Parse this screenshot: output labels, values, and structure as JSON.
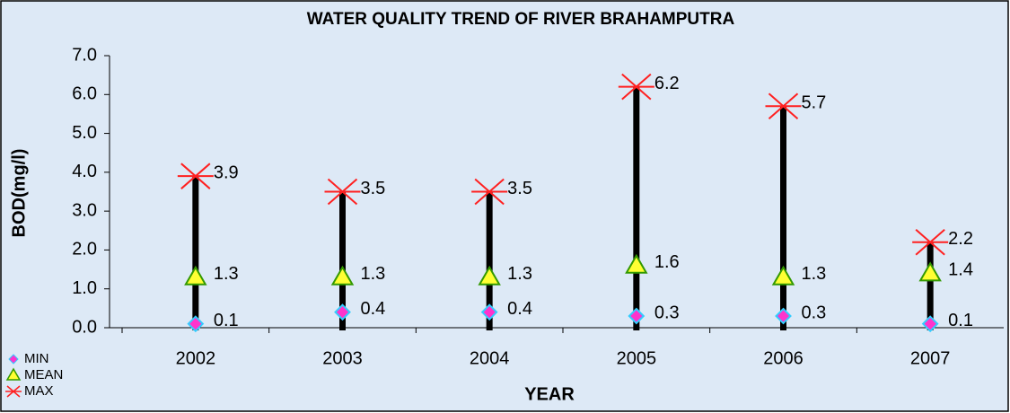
{
  "chart_data": {
    "type": "highlow",
    "title": "WATER QUALITY TREND OF RIVER BRAHAMPUTRA",
    "x_label": "YEAR",
    "y_label": "BOD(mg/l)",
    "categories": [
      "2002",
      "2003",
      "2004",
      "2005",
      "2006",
      "2007"
    ],
    "series": [
      {
        "name": "MIN",
        "color": "#ff33cc",
        "values": [
          0.1,
          0.4,
          0.4,
          0.3,
          0.3,
          0.1
        ]
      },
      {
        "name": "MEAN",
        "color": "#ffff33",
        "values": [
          1.3,
          1.3,
          1.3,
          1.6,
          1.3,
          1.4
        ]
      },
      {
        "name": "MAX",
        "color": "#ff2020",
        "values": [
          3.9,
          3.5,
          3.5,
          6.2,
          5.7,
          2.2
        ]
      }
    ],
    "ylim": [
      0,
      7
    ],
    "yticks": [
      {
        "value": 0,
        "label": "0.0"
      },
      {
        "value": 1,
        "label": "1.0"
      },
      {
        "value": 2,
        "label": "2.0"
      },
      {
        "value": 3,
        "label": "3.0"
      },
      {
        "value": 4,
        "label": "4.0"
      },
      {
        "value": 5,
        "label": "5.0"
      },
      {
        "value": 6,
        "label": "6.0"
      },
      {
        "value": 7,
        "label": "7.0"
      }
    ],
    "legend": "bottom-left"
  }
}
